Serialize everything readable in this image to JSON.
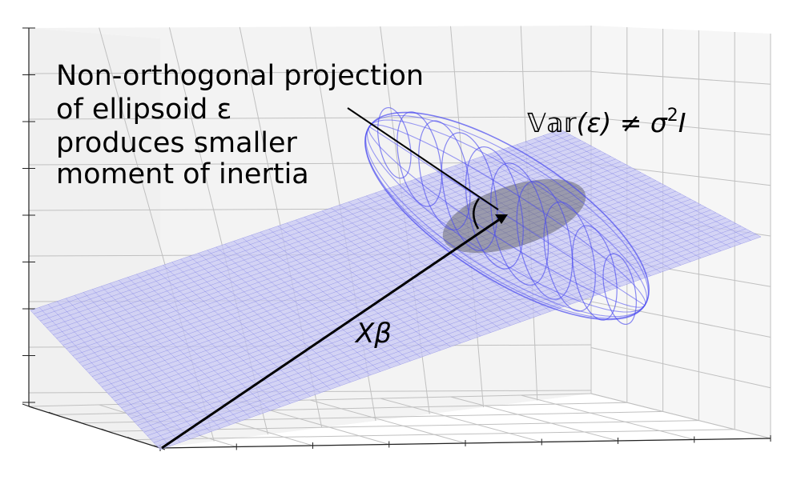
{
  "annotation": {
    "lines": [
      "Non-orthogonal projection",
      "of ellipsoid ε",
      "produces smaller",
      "moment of inertia"
    ]
  },
  "variance_label": {
    "var_text": "𝕍𝕒𝕣",
    "rest_text": "(ε) ≠ σ",
    "sup": "2",
    "tail": "I"
  },
  "vector_label": "Xβ",
  "colors": {
    "plane_fill": "#c8c8f4",
    "plane_grid": "#5a5ae0",
    "ellipsoid": "#4a4af0",
    "shadow": "#555555",
    "pane_left": "#f0f0f0",
    "pane_back": "#f3f3f3",
    "pane_right": "#f6f6f6",
    "axes_grid": "#c0c0c0",
    "vector": "#000000"
  }
}
